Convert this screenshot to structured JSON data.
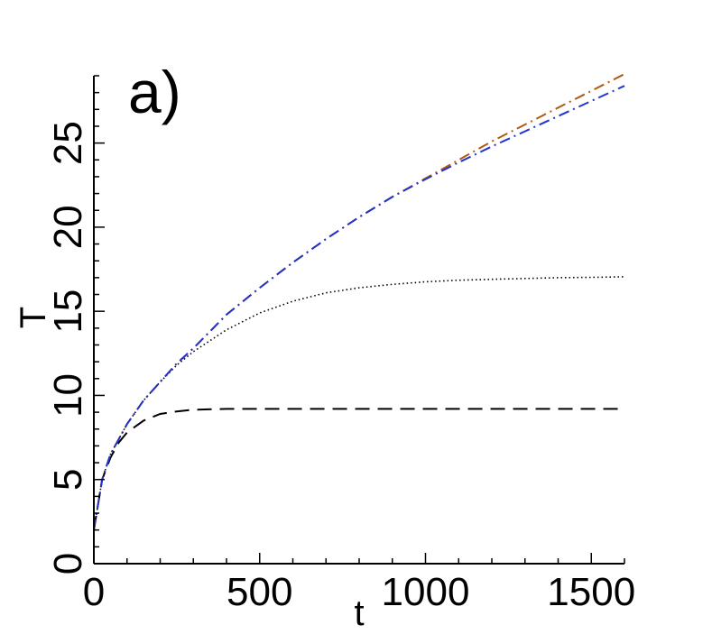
{
  "chart_data": {
    "type": "line",
    "title": "",
    "panel_label": "a)",
    "xlabel": "t",
    "ylabel": "T",
    "xlim": [
      0,
      1600
    ],
    "ylim": [
      0,
      29
    ],
    "x_ticks": [
      "0",
      "500",
      "1000",
      "1500"
    ],
    "y_ticks": [
      "0",
      "5",
      "10",
      "15",
      "20",
      "25"
    ],
    "grid": false,
    "legend": "none",
    "series": [
      {
        "style": "dashed",
        "color": "#000000",
        "x": [
          0,
          25,
          50,
          75,
          100,
          150,
          200,
          250,
          300,
          400,
          600,
          1000,
          1500,
          1600
        ],
        "y": [
          2.0,
          5.0,
          6.3,
          7.2,
          7.8,
          8.5,
          8.9,
          9.05,
          9.15,
          9.2,
          9.2,
          9.2,
          9.2,
          9.2
        ]
      },
      {
        "style": "dotted",
        "color": "#000000",
        "x": [
          0,
          25,
          50,
          100,
          150,
          200,
          250,
          300,
          400,
          500,
          600,
          700,
          800,
          900,
          1000,
          1100,
          1200,
          1300,
          1400,
          1500,
          1600
        ],
        "y": [
          2.0,
          5.0,
          6.5,
          8.3,
          9.7,
          10.8,
          11.8,
          12.6,
          13.9,
          14.9,
          15.6,
          16.1,
          16.4,
          16.6,
          16.75,
          16.85,
          16.9,
          16.95,
          17.0,
          17.02,
          17.05
        ]
      },
      {
        "style": "dash-dot",
        "color": "#b05a10",
        "x": [
          0,
          25,
          50,
          100,
          150,
          200,
          250,
          300,
          400,
          500,
          600,
          700,
          800,
          900,
          1000,
          1100,
          1200,
          1300,
          1400,
          1500,
          1600
        ],
        "y": [
          2.0,
          5.0,
          6.5,
          8.3,
          9.7,
          10.8,
          11.9,
          12.8,
          14.8,
          16.4,
          17.9,
          19.3,
          20.6,
          21.8,
          22.9,
          24.0,
          25.1,
          26.1,
          27.1,
          28.1,
          29.1
        ]
      },
      {
        "style": "dash-dot",
        "color": "#2233cc",
        "x": [
          0,
          25,
          50,
          100,
          150,
          200,
          250,
          300,
          400,
          500,
          600,
          700,
          800,
          900,
          1000,
          1100,
          1200,
          1300,
          1400,
          1500,
          1600
        ],
        "y": [
          2.0,
          5.0,
          6.5,
          8.3,
          9.7,
          10.8,
          11.9,
          12.8,
          14.8,
          16.4,
          17.9,
          19.3,
          20.6,
          21.8,
          22.85,
          23.85,
          24.8,
          25.7,
          26.6,
          27.5,
          28.4
        ]
      }
    ]
  }
}
